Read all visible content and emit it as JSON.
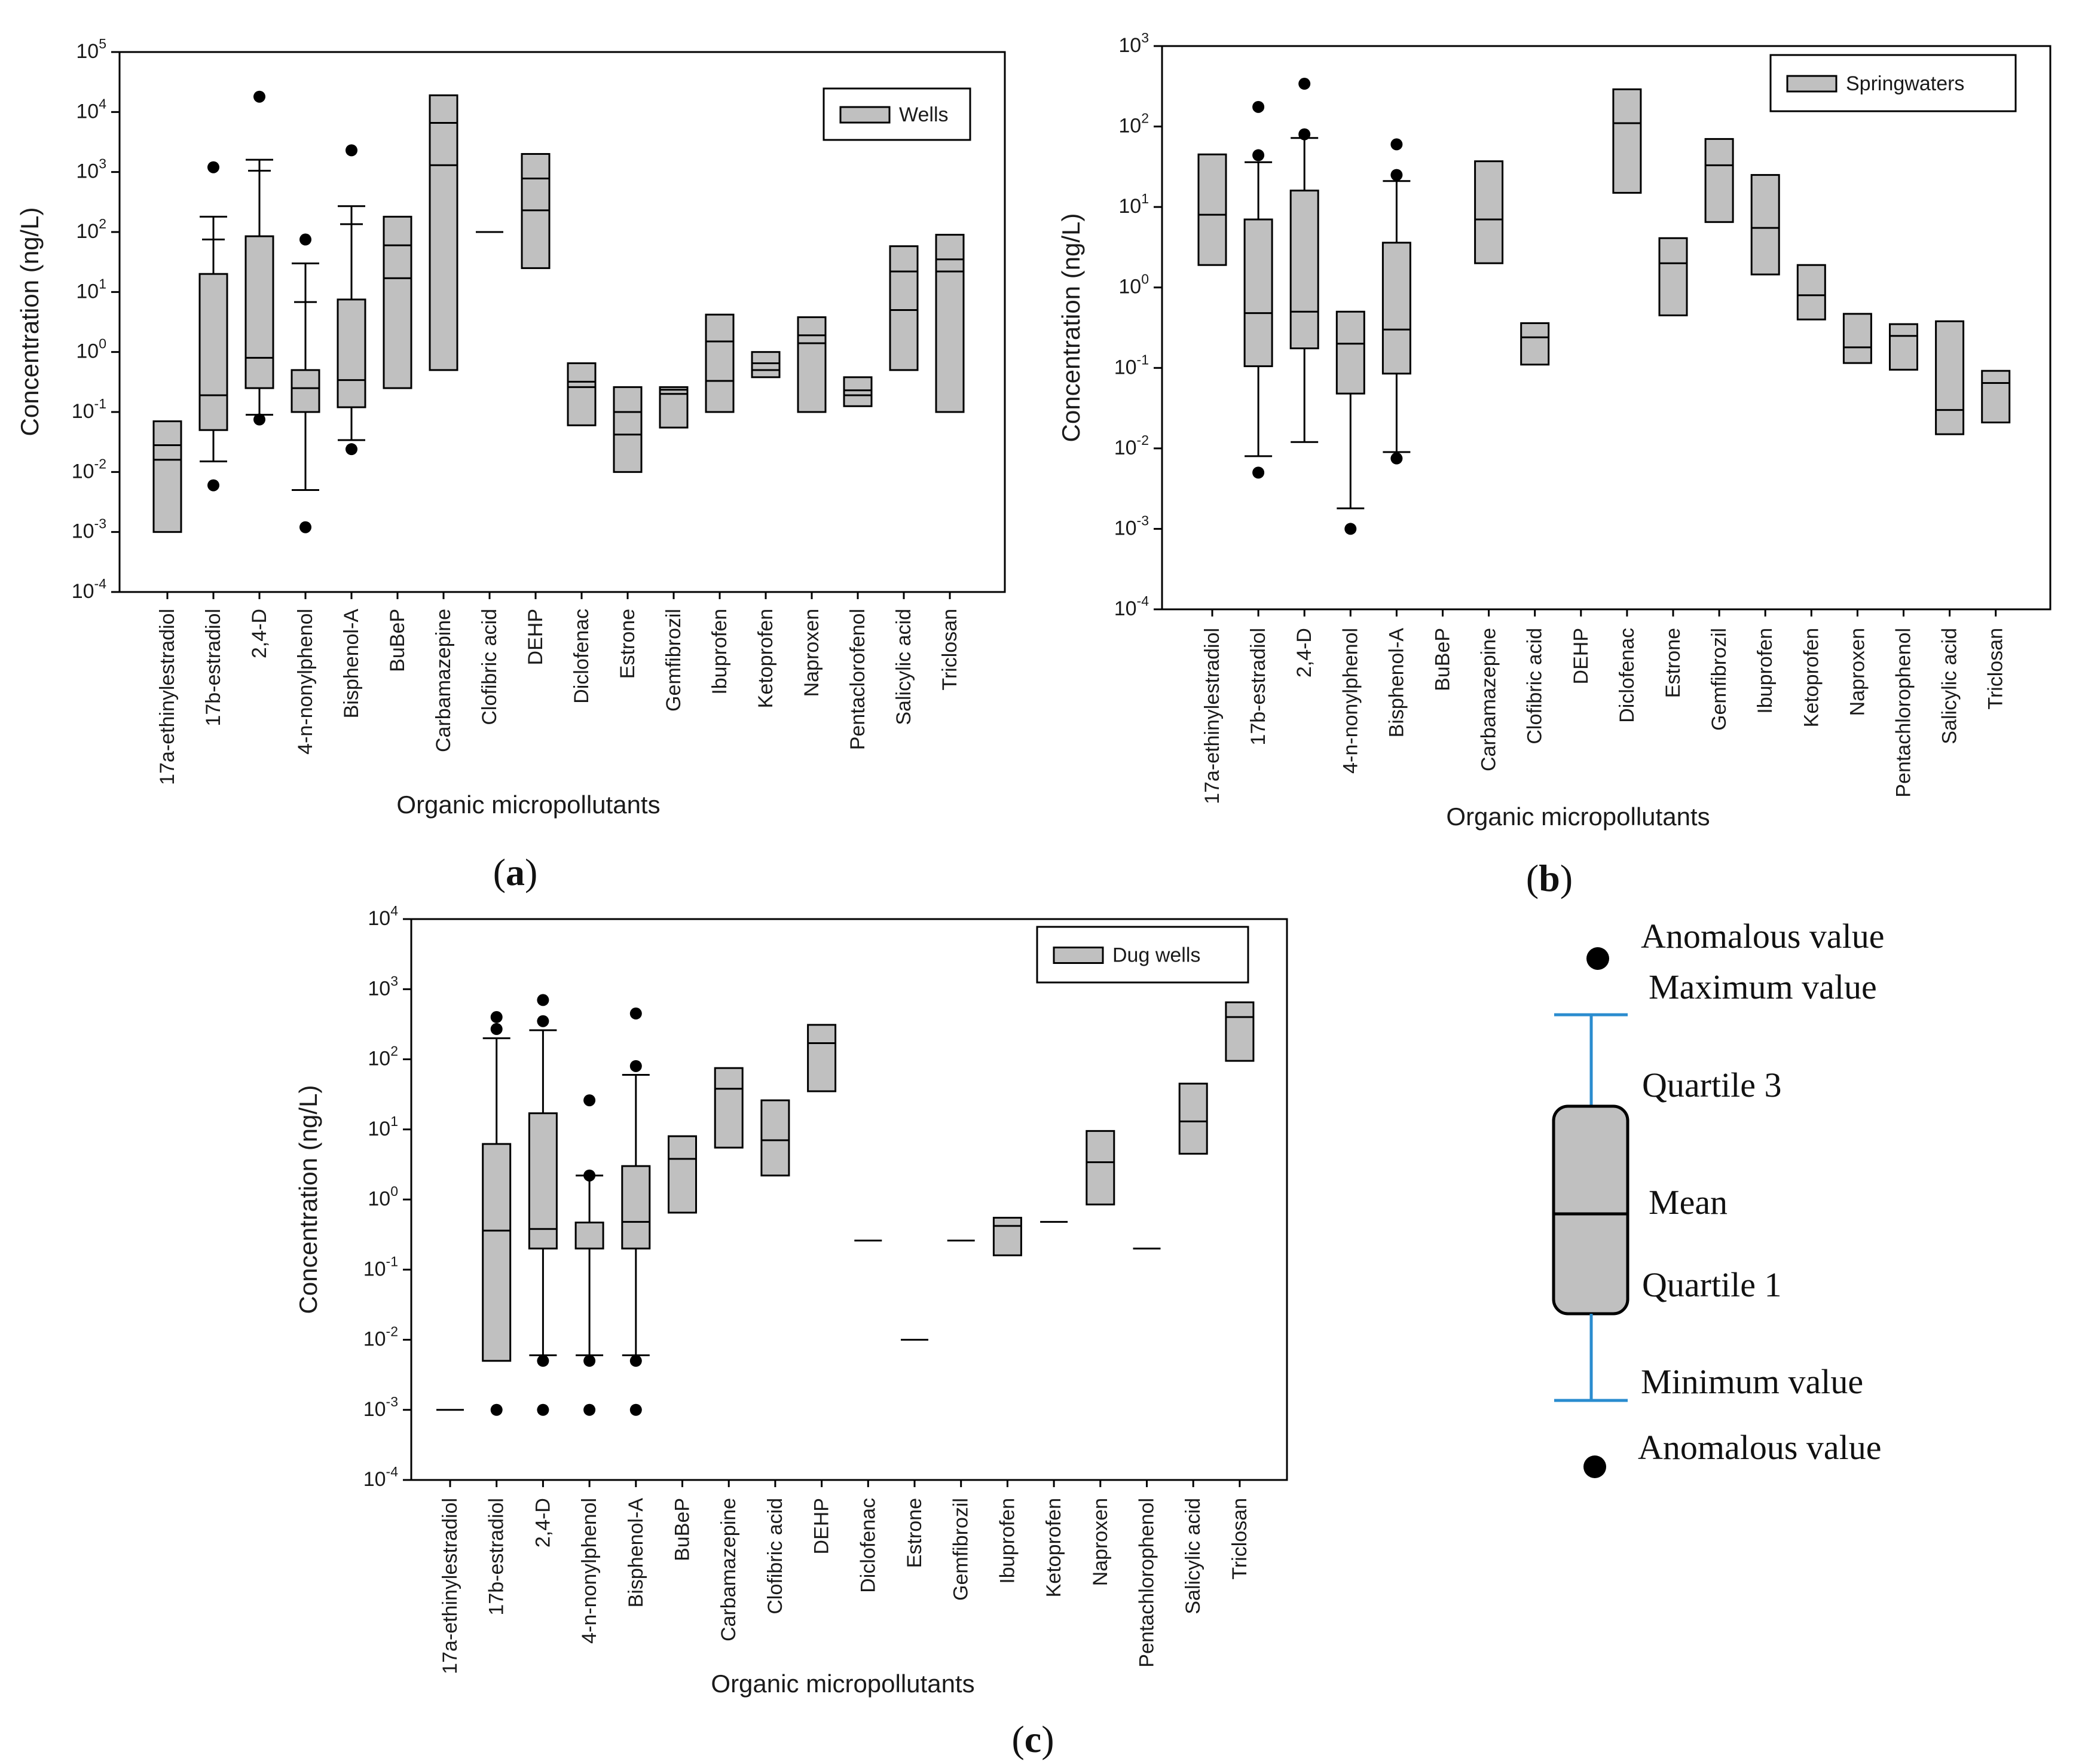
{
  "panel_captions": [
    "(a)",
    "(b)",
    "(c)"
  ],
  "chart_data": [
    {
      "id": "a",
      "type": "box",
      "title": "",
      "legend": "Wells",
      "xlabel": "Organic micropollutants",
      "ylabel": "Concentration (ng/L)",
      "yscale": "log",
      "ylim_exp": [
        -4,
        5
      ],
      "categories": [
        "17a-ethinylestradiol",
        "17b-estradiol",
        "2,4-D",
        "4-n-nonylphenol",
        "Bisphenol-A",
        "BuBeP",
        "Carbamazepine",
        "Clofibric acid",
        "DEHP",
        "Diclofenac",
        "Estrone",
        "Gemfibrozil",
        "Ibuprofen",
        "Ketoprofen",
        "Naproxen",
        "Pentaclorofenol",
        "Salicylic acid",
        "Triclosan"
      ],
      "series": [
        {
          "q1": 0.001,
          "q3": 0.07,
          "lines": [
            0.016,
            0.028
          ]
        },
        {
          "q1": 0.05,
          "q3": 20,
          "lines": [
            0.19
          ],
          "wlo": 0.015,
          "whi": 180,
          "caps": [
            75
          ],
          "out": [
            0.006,
            1200
          ]
        },
        {
          "q1": 0.25,
          "q3": 85,
          "lines": [
            0.8
          ],
          "wlo": 0.09,
          "whi": 1600,
          "caps": [
            1050
          ],
          "out": [
            0.075,
            18000
          ]
        },
        {
          "q1": 0.1,
          "q3": 0.5,
          "lines": [
            0.25
          ],
          "wlo": 0.005,
          "whi": 30,
          "caps": [
            6.8
          ],
          "out": [
            0.0012,
            75
          ]
        },
        {
          "q1": 0.12,
          "q3": 7.5,
          "lines": [
            0.34
          ],
          "wlo": 0.034,
          "whi": 270,
          "caps": [
            135
          ],
          "out": [
            0.024,
            2300
          ]
        },
        {
          "q1": 0.25,
          "q3": 180,
          "lines": [
            17,
            60
          ]
        },
        {
          "q1": 0.5,
          "q3": 19000,
          "lines": [
            1300,
            6600
          ]
        },
        {
          "q1": null,
          "q3": null,
          "lines": [
            100
          ]
        },
        {
          "q1": 25,
          "q3": 2000,
          "lines": [
            230,
            780
          ]
        },
        {
          "q1": 0.06,
          "q3": 0.65,
          "lines": [
            0.26,
            0.32
          ]
        },
        {
          "q1": 0.01,
          "q3": 0.26,
          "lines": [
            0.042,
            0.1
          ]
        },
        {
          "q1": 0.055,
          "q3": 0.26,
          "lines": [
            0.2,
            0.235
          ]
        },
        {
          "q1": 0.1,
          "q3": 4.2,
          "lines": [
            0.33,
            1.5
          ]
        },
        {
          "q1": 0.38,
          "q3": 1.0,
          "lines": [
            0.5,
            0.65
          ]
        },
        {
          "q1": 0.1,
          "q3": 3.8,
          "lines": [
            1.4,
            1.9
          ]
        },
        {
          "q1": 0.125,
          "q3": 0.38,
          "lines": [
            0.19,
            0.23
          ]
        },
        {
          "q1": 0.5,
          "q3": 58,
          "lines": [
            5,
            22
          ]
        },
        {
          "q1": 0.1,
          "q3": 90,
          "lines": [
            22,
            35
          ]
        }
      ]
    },
    {
      "id": "b",
      "type": "box",
      "title": "",
      "legend": "Springwaters",
      "xlabel": "Organic micropollutants",
      "ylabel": "Concentration (ng/L)",
      "yscale": "log",
      "ylim_exp": [
        -4,
        3
      ],
      "categories": [
        "17a-ethinylestradiol",
        "17b-estradiol",
        "2,4-D",
        "4-n-nonylphenol",
        "Bisphenol-A",
        "BuBeP",
        "Carbamazepine",
        "Clofibric acid",
        "DEHP",
        "Diclofenac",
        "Estrone",
        "Gemfibrozil",
        "Ibuprofen",
        "Ketoprofen",
        "Naproxen",
        "Pentachlorophenol",
        "Salicylic acid",
        "Triclosan"
      ],
      "series": [
        {
          "q1": 1.9,
          "q3": 45,
          "lines": [
            8
          ]
        },
        {
          "q1": 0.105,
          "q3": 7,
          "lines": [
            0.48
          ],
          "wlo": 0.008,
          "whi": 36,
          "out": [
            0.005,
            44,
            175
          ]
        },
        {
          "q1": 0.175,
          "q3": 16,
          "lines": [
            0.5
          ],
          "wlo": 0.012,
          "whi": 72,
          "out": [
            80,
            340
          ]
        },
        {
          "q1": 0.048,
          "q3": 0.5,
          "lines": [
            0.2
          ],
          "wlo": 0.0018,
          "whi": null,
          "out": [
            0.001
          ]
        },
        {
          "q1": 0.085,
          "q3": 3.6,
          "lines": [
            0.3
          ],
          "wlo": 0.009,
          "whi": 21,
          "out": [
            0.0075,
            25,
            60
          ]
        },
        {
          "q1": null,
          "q3": null,
          "lines": []
        },
        {
          "q1": 2,
          "q3": 37,
          "lines": [
            7
          ]
        },
        {
          "q1": 0.11,
          "q3": 0.36,
          "lines": [
            0.24
          ]
        },
        {
          "q1": null,
          "q3": null,
          "lines": []
        },
        {
          "q1": 15,
          "q3": 290,
          "lines": [
            110
          ]
        },
        {
          "q1": 0.45,
          "q3": 4.1,
          "lines": [
            2
          ]
        },
        {
          "q1": 6.5,
          "q3": 70,
          "lines": [
            33
          ]
        },
        {
          "q1": 1.45,
          "q3": 25,
          "lines": [
            5.5
          ]
        },
        {
          "q1": 0.4,
          "q3": 1.9,
          "lines": [
            0.8
          ]
        },
        {
          "q1": 0.115,
          "q3": 0.47,
          "lines": [
            0.18
          ]
        },
        {
          "q1": 0.095,
          "q3": 0.35,
          "lines": [
            0.25
          ]
        },
        {
          "q1": 0.015,
          "q3": 0.38,
          "lines": [
            0.03
          ]
        },
        {
          "q1": 0.021,
          "q3": 0.092,
          "lines": [
            0.065
          ]
        }
      ]
    },
    {
      "id": "c",
      "type": "box",
      "title": "",
      "legend": "Dug wells",
      "xlabel": "Organic micropollutants",
      "ylabel": "Concentration (ng/L)",
      "yscale": "log",
      "ylim_exp": [
        -4,
        4
      ],
      "categories": [
        "17a-ethinylestradiol",
        "17b-estradiol",
        "2,4-D",
        "4-n-nonylphenol",
        "Bisphenol-A",
        "BuBeP",
        "Carbamazepine",
        "Clofibric acid",
        "DEHP",
        "Diclofenac",
        "Estrone",
        "Gemfibrozil",
        "Ibuprofen",
        "Ketoprofen",
        "Naproxen",
        "Pentachlorophenol",
        "Salicylic acid",
        "Triclosan"
      ],
      "series": [
        {
          "q1": null,
          "q3": null,
          "lines": [
            0.001
          ]
        },
        {
          "q1": 0.005,
          "q3": 6.2,
          "lines": [
            0.36
          ],
          "wlo": null,
          "whi": 200,
          "out": [
            0.001,
            270,
            400
          ]
        },
        {
          "q1": 0.2,
          "q3": 17,
          "lines": [
            0.38
          ],
          "wlo": 0.006,
          "whi": 260,
          "out": [
            0.001,
            0.005,
            350,
            700
          ]
        },
        {
          "q1": 0.2,
          "q3": 0.47,
          "lines": [],
          "wlo": 0.006,
          "whi": 2.2,
          "out": [
            0.001,
            0.005,
            2.2,
            26
          ]
        },
        {
          "q1": 0.2,
          "q3": 3,
          "lines": [
            0.48
          ],
          "wlo": 0.006,
          "whi": 60,
          "out": [
            0.001,
            0.005,
            80,
            450
          ]
        },
        {
          "q1": 0.65,
          "q3": 8,
          "lines": [
            3.8
          ]
        },
        {
          "q1": 5.5,
          "q3": 75,
          "lines": [
            38
          ]
        },
        {
          "q1": 2.2,
          "q3": 26,
          "lines": [
            7
          ]
        },
        {
          "q1": 35,
          "q3": 310,
          "lines": [
            170
          ]
        },
        {
          "q1": null,
          "q3": null,
          "lines": [
            0.26
          ]
        },
        {
          "q1": null,
          "q3": null,
          "lines": [
            0.01
          ]
        },
        {
          "q1": null,
          "q3": null,
          "lines": [
            0.26
          ]
        },
        {
          "q1": 0.16,
          "q3": 0.55,
          "lines": [
            0.42
          ]
        },
        {
          "q1": null,
          "q3": null,
          "lines": [
            0.48
          ]
        },
        {
          "q1": 0.85,
          "q3": 9.5,
          "lines": [
            3.4
          ]
        },
        {
          "q1": null,
          "q3": null,
          "lines": [
            0.2
          ]
        },
        {
          "q1": 4.5,
          "q3": 45,
          "lines": [
            13
          ]
        },
        {
          "q1": 95,
          "q3": 650,
          "lines": [
            400
          ]
        }
      ]
    }
  ],
  "key_legend": {
    "anomalous_top": "Anomalous value",
    "maximum": "Maximum value",
    "quartile3": "Quartile 3",
    "mean": "Mean",
    "quartile1": "Quartile 1",
    "minimum": "Minimum value",
    "anomalous_bottom": "Anomalous value",
    "whisker_color": "#2a8ccf"
  }
}
